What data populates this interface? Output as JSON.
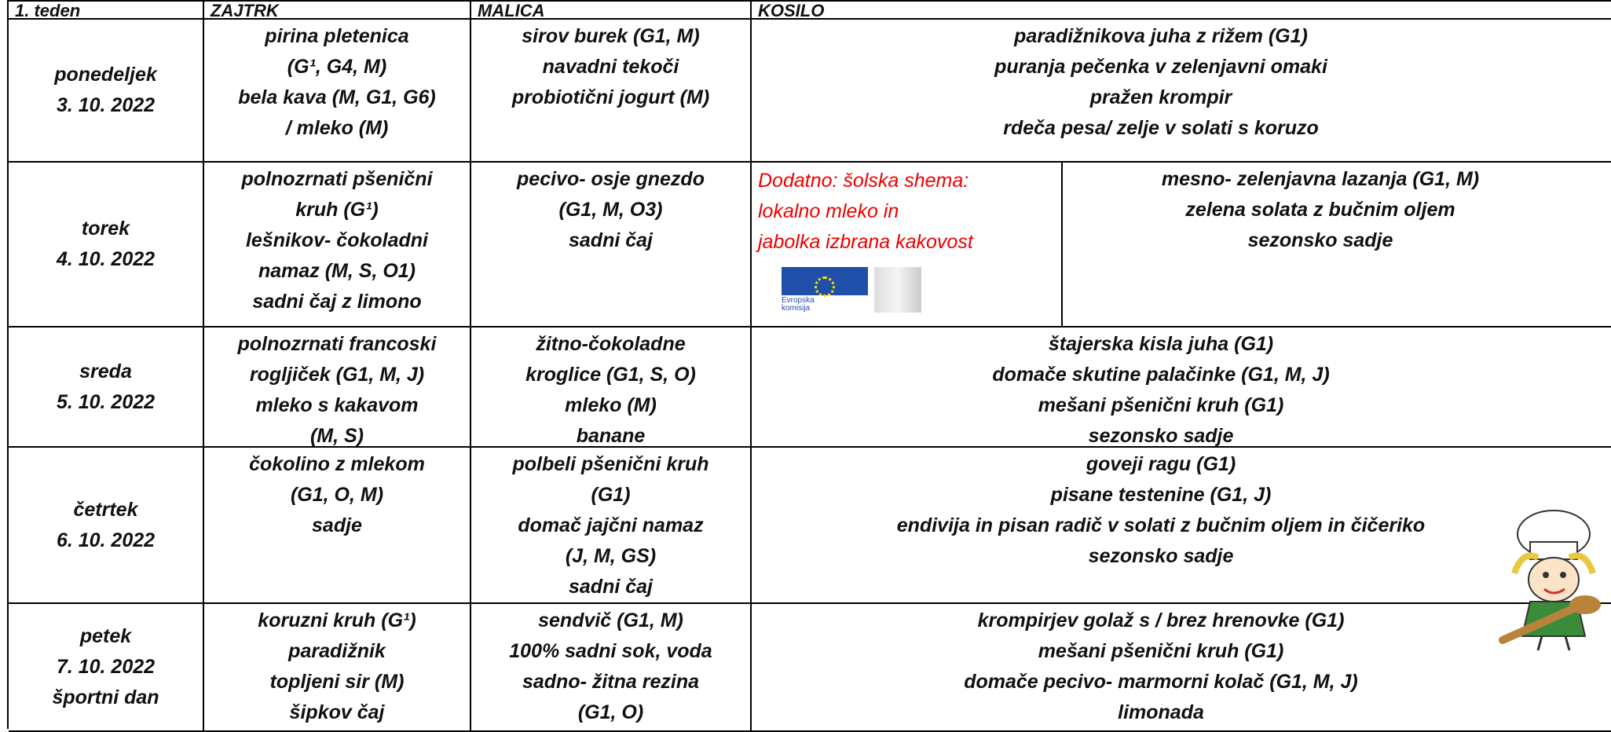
{
  "header": [
    "1. teden",
    "ZAJTRK",
    "MALICA",
    "KOSILO"
  ],
  "rows": [
    {
      "day": [
        "ponedeljek",
        "3. 10. 2022"
      ],
      "zajtrk": [
        "pirina pletenica",
        "(G¹, G4, M)",
        "bela kava (M, G1, G6)",
        "/ mleko (M)"
      ],
      "malica": [
        "sirov burek (G1, M)",
        "navadni tekoči",
        "probiotični jogurt (M)"
      ],
      "kosilo": [
        "paradižnikova juha z rižem (G1)",
        "puranja pečenka v zelenjavni omaki",
        "pražen krompir",
        "rdeča pesa/ zelje v solati s koruzo"
      ]
    },
    {
      "day": [
        "torek",
        "4. 10. 2022"
      ],
      "zajtrk": [
        "polnozrnati pšenični",
        "kruh (G¹)",
        "lešnikov- čokoladni",
        "namaz (M, S, O1)",
        "sadni čaj z limono"
      ],
      "malica": [
        "pecivo- osje gnezdo",
        "(G1, M, O3)",
        "sadni čaj"
      ],
      "kosilo": [
        "mesno- zelenjavna lazanja (G1, M)",
        "zelena solata z  bučnim oljem",
        "sezonsko sadje"
      ]
    },
    {
      "day": [
        "sreda",
        "5. 10. 2022"
      ],
      "zajtrk": [
        "polnozrnati francoski",
        "rogljiček (G1, M, J)",
        "mleko s kakavom",
        "(M, S)"
      ],
      "malica": [
        "žitno-čokoladne",
        "kroglice (G1, S, O)",
        "mleko (M)",
        "banane"
      ],
      "kosilo": [
        "štajerska kisla juha (G1)",
        "domače skutine palačinke (G1, M, J)",
        "mešani pšenični kruh (G1)",
        "sezonsko sadje"
      ]
    },
    {
      "day": [
        "četrtek",
        "6. 10. 2022"
      ],
      "zajtrk": [
        "čokolino z mlekom",
        "(G1, O, M)",
        "sadje"
      ],
      "malica": [
        "polbeli pšenični kruh",
        "(G1)",
        "domač jajčni namaz",
        "(J, M, GS)",
        "sadni čaj"
      ],
      "kosilo": [
        "goveji ragu (G1)",
        "pisane testenine (G1, J)",
        "endivija in pisan radič v solati z bučnim oljem in čičeriko",
        "sezonsko sadje"
      ]
    },
    {
      "day": [
        "petek",
        "7. 10. 2022",
        "športni dan"
      ],
      "zajtrk": [
        "koruzni kruh (G¹)",
        "paradižnik",
        "topljeni sir (M)",
        "šipkov čaj"
      ],
      "malica": [
        "sendvič (G1, M)",
        "100% sadni sok, voda",
        "sadno- žitna rezina",
        "(G1, O)"
      ],
      "kosilo": [
        "krompirjev golaž s / brez hrenovke (G1)",
        "mešani pšenični kruh (G1)",
        "domače pecivo- marmorni kolač (G1, M, J)",
        "limonada"
      ]
    }
  ],
  "note": {
    "row": 1,
    "lines": [
      "Dodatno:  šolska  shema:",
      "lokalno mleko in",
      "jabolka izbrana kakovost"
    ],
    "logo": [
      "Evropska",
      "komisija"
    ]
  }
}
